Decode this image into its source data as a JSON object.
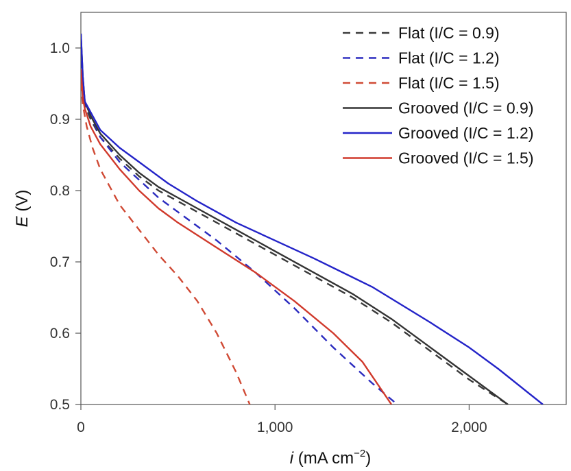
{
  "chart_data": {
    "type": "line",
    "xlabel": {
      "var": "i",
      "unit": " (mA cm",
      "exp": "−2",
      "close": ")"
    },
    "ylabel": {
      "var": "E",
      "unit": " (V)"
    },
    "xlim": [
      0,
      2500
    ],
    "ylim": [
      0.5,
      1.05
    ],
    "x_ticks": [
      0,
      1000,
      2000
    ],
    "x_tick_labels": [
      "0",
      "1,000",
      "2,000"
    ],
    "y_ticks": [
      0.5,
      0.6,
      0.7,
      0.8,
      0.9,
      1.0
    ],
    "y_tick_labels": [
      "0.5",
      "0.6",
      "0.7",
      "0.8",
      "0.9",
      "1.0"
    ],
    "grid": false,
    "legend_position": "top-right",
    "series": [
      {
        "name": "Flat (I/C = 0.9)",
        "color": "#3a3a3a",
        "dash": "dashed",
        "points": [
          [
            0,
            1.0
          ],
          [
            10,
            0.95
          ],
          [
            20,
            0.92
          ],
          [
            50,
            0.9
          ],
          [
            100,
            0.875
          ],
          [
            200,
            0.845
          ],
          [
            300,
            0.82
          ],
          [
            400,
            0.8
          ],
          [
            600,
            0.77
          ],
          [
            800,
            0.74
          ],
          [
            1000,
            0.71
          ],
          [
            1200,
            0.68
          ],
          [
            1400,
            0.65
          ],
          [
            1600,
            0.615
          ],
          [
            1800,
            0.575
          ],
          [
            2000,
            0.535
          ],
          [
            2200,
            0.5
          ]
        ]
      },
      {
        "name": "Flat (I/C = 1.2)",
        "color": "#2b2bbf",
        "dash": "dashed",
        "points": [
          [
            0,
            1.0
          ],
          [
            10,
            0.95
          ],
          [
            20,
            0.92
          ],
          [
            50,
            0.905
          ],
          [
            100,
            0.875
          ],
          [
            200,
            0.84
          ],
          [
            300,
            0.815
          ],
          [
            400,
            0.79
          ],
          [
            500,
            0.77
          ],
          [
            700,
            0.73
          ],
          [
            900,
            0.685
          ],
          [
            1100,
            0.635
          ],
          [
            1300,
            0.58
          ],
          [
            1500,
            0.53
          ],
          [
            1630,
            0.5
          ]
        ]
      },
      {
        "name": "Flat (I/C = 1.5)",
        "color": "#d04a35",
        "dash": "dashed",
        "points": [
          [
            0,
            0.95
          ],
          [
            10,
            0.92
          ],
          [
            30,
            0.89
          ],
          [
            60,
            0.86
          ],
          [
            100,
            0.83
          ],
          [
            200,
            0.78
          ],
          [
            300,
            0.745
          ],
          [
            400,
            0.71
          ],
          [
            500,
            0.68
          ],
          [
            600,
            0.645
          ],
          [
            700,
            0.6
          ],
          [
            800,
            0.545
          ],
          [
            870,
            0.5
          ]
        ]
      },
      {
        "name": "Grooved (I/C = 0.9)",
        "color": "#333333",
        "dash": "solid",
        "points": [
          [
            0,
            1.02
          ],
          [
            10,
            0.96
          ],
          [
            20,
            0.925
          ],
          [
            50,
            0.905
          ],
          [
            100,
            0.88
          ],
          [
            200,
            0.85
          ],
          [
            300,
            0.825
          ],
          [
            400,
            0.805
          ],
          [
            600,
            0.775
          ],
          [
            800,
            0.745
          ],
          [
            1000,
            0.715
          ],
          [
            1200,
            0.685
          ],
          [
            1400,
            0.655
          ],
          [
            1600,
            0.62
          ],
          [
            1800,
            0.58
          ],
          [
            2000,
            0.54
          ],
          [
            2200,
            0.5
          ]
        ]
      },
      {
        "name": "Grooved (I/C = 1.2)",
        "color": "#2323c8",
        "dash": "solid",
        "points": [
          [
            0,
            1.02
          ],
          [
            10,
            0.96
          ],
          [
            20,
            0.925
          ],
          [
            50,
            0.91
          ],
          [
            100,
            0.885
          ],
          [
            200,
            0.86
          ],
          [
            300,
            0.84
          ],
          [
            450,
            0.81
          ],
          [
            600,
            0.785
          ],
          [
            800,
            0.755
          ],
          [
            1000,
            0.73
          ],
          [
            1200,
            0.705
          ],
          [
            1500,
            0.665
          ],
          [
            1800,
            0.615
          ],
          [
            2000,
            0.58
          ],
          [
            2150,
            0.55
          ],
          [
            2380,
            0.5
          ]
        ]
      },
      {
        "name": "Grooved (I/C = 1.5)",
        "color": "#d0392b",
        "dash": "solid",
        "points": [
          [
            0,
            0.97
          ],
          [
            10,
            0.93
          ],
          [
            20,
            0.915
          ],
          [
            50,
            0.89
          ],
          [
            100,
            0.865
          ],
          [
            200,
            0.83
          ],
          [
            300,
            0.8
          ],
          [
            400,
            0.775
          ],
          [
            500,
            0.755
          ],
          [
            700,
            0.72
          ],
          [
            900,
            0.685
          ],
          [
            1100,
            0.645
          ],
          [
            1300,
            0.6
          ],
          [
            1450,
            0.56
          ],
          [
            1600,
            0.5
          ]
        ]
      }
    ]
  }
}
